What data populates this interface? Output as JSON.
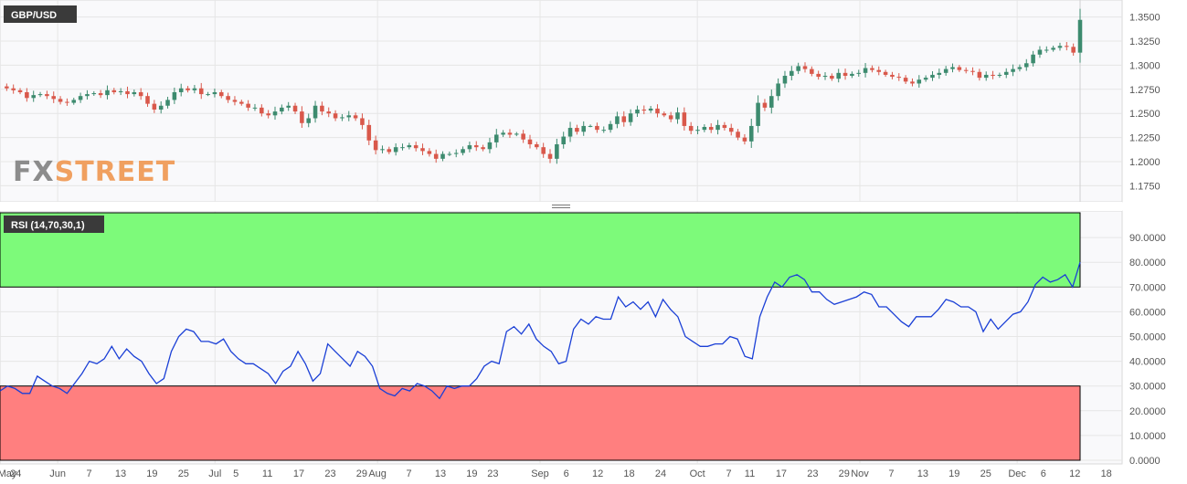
{
  "chart_data": [
    {
      "type": "candlestick",
      "title": "GBP/USD",
      "watermark": [
        "FX",
        "STREET"
      ],
      "y_ticks": [
        "1.3500",
        "1.3250",
        "1.3000",
        "1.2750",
        "1.2500",
        "1.2250",
        "1.2000",
        "1.1750"
      ],
      "ylim": [
        1.165,
        1.36
      ],
      "grid": true,
      "x_dates": [
        "2021-05-21",
        "2021-12-13"
      ],
      "closes": [
        1.278,
        1.276,
        1.274,
        1.272,
        1.266,
        1.269,
        1.27,
        1.268,
        1.265,
        1.262,
        1.261,
        1.264,
        1.268,
        1.27,
        1.271,
        1.269,
        1.274,
        1.272,
        1.273,
        1.27,
        1.272,
        1.268,
        1.26,
        1.254,
        1.258,
        1.264,
        1.272,
        1.276,
        1.274,
        1.276,
        1.27,
        1.27,
        1.272,
        1.268,
        1.264,
        1.262,
        1.26,
        1.256,
        1.256,
        1.25,
        1.248,
        1.252,
        1.256,
        1.258,
        1.252,
        1.24,
        1.245,
        1.258,
        1.252,
        1.25,
        1.245,
        1.246,
        1.248,
        1.245,
        1.238,
        1.222,
        1.212,
        1.213,
        1.21,
        1.215,
        1.215,
        1.217,
        1.214,
        1.211,
        1.208,
        1.203,
        1.208,
        1.208,
        1.209,
        1.213,
        1.217,
        1.215,
        1.213,
        1.22,
        1.228,
        1.23,
        1.228,
        1.229,
        1.223,
        1.218,
        1.215,
        1.208,
        1.203,
        1.218,
        1.226,
        1.235,
        1.231,
        1.237,
        1.237,
        1.233,
        1.233,
        1.239,
        1.247,
        1.241,
        1.25,
        1.254,
        1.253,
        1.255,
        1.25,
        1.248,
        1.244,
        1.251,
        1.237,
        1.232,
        1.233,
        1.236,
        1.233,
        1.238,
        1.235,
        1.231,
        1.225,
        1.221,
        1.237,
        1.261,
        1.256,
        1.268,
        1.281,
        1.289,
        1.294,
        1.299,
        1.296,
        1.291,
        1.288,
        1.289,
        1.286,
        1.292,
        1.289,
        1.291,
        1.292,
        1.297,
        1.295,
        1.293,
        1.29,
        1.288,
        1.287,
        1.283,
        1.281,
        1.285,
        1.287,
        1.29,
        1.292,
        1.296,
        1.298,
        1.295,
        1.294,
        1.293,
        1.287,
        1.29,
        1.289,
        1.29,
        1.293,
        1.296,
        1.298,
        1.302,
        1.311,
        1.316,
        1.316,
        1.318,
        1.32,
        1.319,
        1.313,
        1.347
      ]
    },
    {
      "type": "line",
      "title": "RSI (14,70,30,1)",
      "overbought": 70,
      "oversold": 30,
      "y_ticks": [
        "90.0000",
        "80.0000",
        "70.0000",
        "60.0000",
        "50.0000",
        "40.0000",
        "30.0000",
        "20.0000",
        "10.0000",
        "0.0000"
      ],
      "ylim": [
        0,
        100
      ],
      "grid": true,
      "values": [
        28,
        30,
        29,
        27,
        27,
        34,
        32,
        30,
        29,
        27,
        31,
        35,
        40,
        39,
        41,
        46,
        41,
        45,
        42,
        40,
        35,
        31,
        33,
        44,
        50,
        53,
        52,
        48,
        48,
        47,
        49,
        44,
        41,
        39,
        39,
        37,
        35,
        31,
        36,
        38,
        44,
        39,
        32,
        35,
        47,
        44,
        41,
        38,
        44,
        42,
        38,
        29,
        27,
        26,
        29,
        28,
        31,
        30,
        28,
        25,
        30,
        29,
        30,
        30,
        33,
        38,
        40,
        39,
        52,
        54,
        51,
        55,
        49,
        46,
        44,
        39,
        40,
        53,
        57,
        55,
        58,
        57,
        57,
        66,
        62,
        64,
        61,
        64,
        58,
        65,
        61,
        58,
        50,
        48,
        46,
        46,
        47,
        47,
        50,
        49,
        42,
        41,
        58,
        66,
        72,
        70,
        74,
        75,
        73,
        68,
        68,
        65,
        63,
        64,
        65,
        66,
        68,
        67,
        62,
        62,
        59,
        56,
        54,
        58,
        58,
        58,
        61,
        65,
        64,
        62,
        62,
        60,
        52,
        57,
        53,
        56,
        59,
        60,
        64,
        71,
        74,
        72,
        73,
        75,
        70,
        80
      ]
    }
  ],
  "x_axis": {
    "labels": [
      {
        "text": "May",
        "d": "2021-05-21"
      },
      {
        "text": "24",
        "d": "2021-05-24"
      },
      {
        "text": "Jun",
        "d": "2021-06-01"
      },
      {
        "text": "7",
        "d": "2021-06-07"
      },
      {
        "text": "13",
        "d": "2021-06-13"
      },
      {
        "text": "19",
        "d": "2021-06-19"
      },
      {
        "text": "25",
        "d": "2021-06-25"
      },
      {
        "text": "Jul",
        "d": "2021-07-01"
      },
      {
        "text": "5",
        "d": "2021-07-05"
      },
      {
        "text": "11",
        "d": "2021-07-11"
      },
      {
        "text": "17",
        "d": "2021-07-17"
      },
      {
        "text": "23",
        "d": "2021-07-23"
      },
      {
        "text": "29",
        "d": "2021-07-29"
      },
      {
        "text": "Aug",
        "d": "2021-08-01"
      },
      {
        "text": "7",
        "d": "2021-08-07"
      },
      {
        "text": "13",
        "d": "2021-08-13"
      },
      {
        "text": "19",
        "d": "2021-08-19"
      },
      {
        "text": "23",
        "d": "2021-08-23"
      },
      {
        "text": "Sep",
        "d": "2021-09-01"
      },
      {
        "text": "6",
        "d": "2021-09-06"
      },
      {
        "text": "12",
        "d": "2021-09-12"
      },
      {
        "text": "18",
        "d": "2021-09-18"
      },
      {
        "text": "24",
        "d": "2021-09-24"
      },
      {
        "text": "Oct",
        "d": "2021-10-01"
      },
      {
        "text": "7",
        "d": "2021-10-07"
      },
      {
        "text": "11",
        "d": "2021-10-11"
      },
      {
        "text": "17",
        "d": "2021-10-17"
      },
      {
        "text": "23",
        "d": "2021-10-23"
      },
      {
        "text": "29",
        "d": "2021-10-29"
      },
      {
        "text": "Nov",
        "d": "2021-11-01"
      },
      {
        "text": "7",
        "d": "2021-11-07"
      },
      {
        "text": "13",
        "d": "2021-11-13"
      },
      {
        "text": "19",
        "d": "2021-11-19"
      },
      {
        "text": "25",
        "d": "2021-11-25"
      },
      {
        "text": "Dec",
        "d": "2021-12-01"
      },
      {
        "text": "6",
        "d": "2021-12-06"
      },
      {
        "text": "12",
        "d": "2021-12-12"
      },
      {
        "text": "18",
        "d": "2021-12-18"
      }
    ],
    "month_separators": [
      "2021-06-01",
      "2021-07-01",
      "2021-08-01",
      "2021-09-01",
      "2021-10-01",
      "2021-11-01",
      "2021-12-01"
    ]
  },
  "colors": {
    "up": "#3d8b6f",
    "down": "#d9584b",
    "rsi_line": "#1a3fd6",
    "overbought_zone": "#7dfa7a",
    "oversold_zone": "#ff7f7f",
    "grid": "#e6e6e6",
    "axis_text": "#555555",
    "badge": "#3a3a3a",
    "logo_dark": "#8c8c8c",
    "logo_light": "#f0a060"
  }
}
